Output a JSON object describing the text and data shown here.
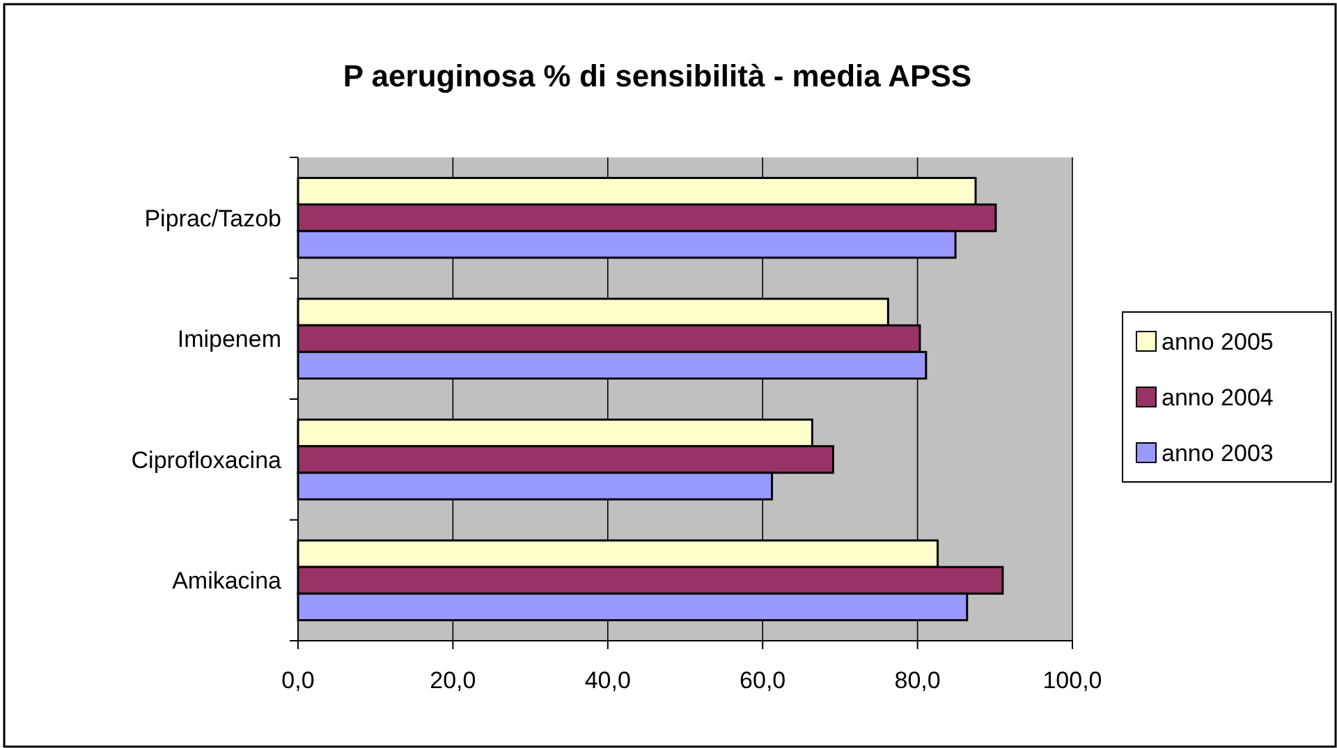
{
  "chart_data": {
    "type": "bar",
    "orientation": "horizontal",
    "title": "P aeruginosa % di sensibilità - media APSS",
    "categories": [
      "Piprac/Tazob",
      "Imipenem",
      "Ciprofloxacina",
      "Amikacina"
    ],
    "series": [
      {
        "name": "anno 2005",
        "color": "#ffffcc",
        "values": [
          87.5,
          76.2,
          66.4,
          82.6
        ]
      },
      {
        "name": "anno 2004",
        "color": "#993366",
        "values": [
          90.1,
          80.3,
          69.1,
          91.0
        ]
      },
      {
        "name": "anno 2003",
        "color": "#9999ff",
        "values": [
          84.9,
          81.1,
          61.2,
          86.4
        ]
      }
    ],
    "xlim": [
      0,
      100
    ],
    "xticks": [
      {
        "value": 0,
        "label": "0,0"
      },
      {
        "value": 20,
        "label": "20,0"
      },
      {
        "value": 40,
        "label": "40,0"
      },
      {
        "value": 60,
        "label": "60,0"
      },
      {
        "value": 80,
        "label": "80,0"
      },
      {
        "value": 100,
        "label": "100,0"
      }
    ],
    "grid": "x",
    "legend": "right"
  }
}
